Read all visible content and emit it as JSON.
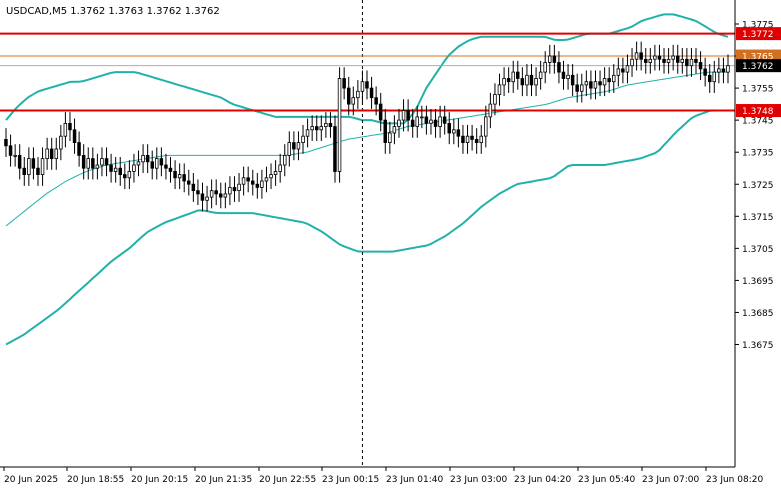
{
  "header": {
    "symbol_line": "USDCAD,M5  1.3762 1.3763 1.3762 1.3762"
  },
  "colors": {
    "background": "#ffffff",
    "candle": "#000000",
    "bollinger": "#20b2aa",
    "level_line": "#e00000",
    "orange_line": "#d07020",
    "price_box": "#000000",
    "grid_text": "#000000"
  },
  "chart_data": {
    "type": "candlestick",
    "title": "USDCAD,M5",
    "ylim": [
      1.367,
      1.378
    ],
    "y_ticks": [
      "1.3775",
      "1.3765",
      "1.3755",
      "1.3745",
      "1.3735",
      "1.3725",
      "1.3715",
      "1.3705",
      "1.3695",
      "1.3685",
      "1.3675"
    ],
    "x_ticks": [
      "20 Jun 2025",
      "20 Jun 18:55",
      "20 Jun 20:15",
      "20 Jun 21:35",
      "20 Jun 22:55",
      "23 Jun 00:15",
      "23 Jun 01:40",
      "23 Jun 03:00",
      "23 Jun 04:20",
      "23 Jun 05:40",
      "23 Jun 07:00",
      "23 Jun 08:20"
    ],
    "horizontal_levels": [
      {
        "price": 1.3772,
        "label": "1.3772",
        "color": "#e00000"
      },
      {
        "price": 1.3748,
        "label": "1.3748",
        "color": "#e00000"
      },
      {
        "price": 1.3765,
        "label": "1.3765",
        "color": "#d07020"
      },
      {
        "price": 1.3762,
        "label": "1.3762",
        "color": "#000000"
      }
    ],
    "session_separator_index": 78,
    "close": [
      1.3737,
      1.3734,
      1.3734,
      1.373,
      1.3728,
      1.3733,
      1.373,
      1.3728,
      1.3733,
      1.3736,
      1.3733,
      1.3736,
      1.374,
      1.3744,
      1.3742,
      1.3738,
      1.3734,
      1.373,
      1.3733,
      1.373,
      1.3731,
      1.3733,
      1.3731,
      1.3729,
      1.373,
      1.3728,
      1.3727,
      1.3729,
      1.3731,
      1.3732,
      1.3734,
      1.3732,
      1.373,
      1.3733,
      1.3731,
      1.373,
      1.3729,
      1.3727,
      1.3728,
      1.3726,
      1.3725,
      1.3723,
      1.3722,
      1.372,
      1.3721,
      1.3723,
      1.3722,
      1.3721,
      1.3722,
      1.3724,
      1.3723,
      1.3725,
      1.3727,
      1.3726,
      1.3725,
      1.3724,
      1.3726,
      1.3727,
      1.3728,
      1.3729,
      1.3731,
      1.3734,
      1.3738,
      1.3736,
      1.3738,
      1.374,
      1.3742,
      1.3743,
      1.3742,
      1.3743,
      1.3744,
      1.3743,
      1.3729,
      1.3758,
      1.3755,
      1.375,
      1.3752,
      1.3754,
      1.3757,
      1.3755,
      1.3752,
      1.375,
      1.3745,
      1.3738,
      1.3741,
      1.3743,
      1.3745,
      1.3748,
      1.3745,
      1.3743,
      1.3746,
      1.3746,
      1.3744,
      1.3745,
      1.3743,
      1.3746,
      1.3744,
      1.3741,
      1.3742,
      1.374,
      1.3738,
      1.374,
      1.3739,
      1.3738,
      1.374,
      1.3746,
      1.375,
      1.3753,
      1.3756,
      1.3758,
      1.3757,
      1.376,
      1.3758,
      1.3756,
      1.3759,
      1.3756,
      1.3758,
      1.376,
      1.3763,
      1.3765,
      1.3763,
      1.376,
      1.3758,
      1.3759,
      1.3756,
      1.3754,
      1.3756,
      1.3757,
      1.3755,
      1.3757,
      1.3756,
      1.3758,
      1.3757,
      1.3759,
      1.3761,
      1.376,
      1.3762,
      1.3764,
      1.3766,
      1.3764,
      1.3763,
      1.3764,
      1.3765,
      1.3764,
      1.3763,
      1.3764,
      1.3765,
      1.3763,
      1.3764,
      1.3762,
      1.3764,
      1.3763,
      1.3761,
      1.3759,
      1.3757,
      1.376,
      1.3761,
      1.376,
      1.3762
    ],
    "bollinger_upper": [
      1.3745,
      1.3749,
      1.3752,
      1.3754,
      1.3755,
      1.3756,
      1.3757,
      1.3757,
      1.3758,
      1.3759,
      1.376,
      1.376,
      1.376,
      1.3759,
      1.3758,
      1.3757,
      1.3756,
      1.3755,
      1.3754,
      1.3753,
      1.3752,
      1.375,
      1.3749,
      1.3748,
      1.3747,
      1.3746,
      1.3746,
      1.3746,
      1.3746,
      1.3746,
      1.3746,
      1.3746,
      1.3746,
      1.3745,
      1.3745,
      1.3744,
      1.3744,
      1.3744,
      1.3748,
      1.3755,
      1.376,
      1.3765,
      1.3768,
      1.377,
      1.3771,
      1.3771,
      1.3771,
      1.3771,
      1.3771,
      1.3771,
      1.3771,
      1.377,
      1.377,
      1.3771,
      1.3772,
      1.3772,
      1.3772,
      1.3773,
      1.3774,
      1.3776,
      1.3777,
      1.3778,
      1.3778,
      1.3777,
      1.3776,
      1.3774,
      1.3772,
      1.3771
    ],
    "bollinger_middle": [
      1.3712,
      1.3717,
      1.3722,
      1.3726,
      1.3729,
      1.3731,
      1.3732,
      1.3733,
      1.3734,
      1.3734,
      1.3734,
      1.3734,
      1.3734,
      1.3734,
      1.3734,
      1.3735,
      1.3737,
      1.3739,
      1.374,
      1.3741,
      1.3743,
      1.3744,
      1.3745,
      1.3746,
      1.3747,
      1.3748,
      1.3749,
      1.375,
      1.3752,
      1.3753,
      1.3754,
      1.3756,
      1.3757,
      1.3758,
      1.3759,
      1.376,
      1.376
    ],
    "bollinger_lower": [
      1.3675,
      1.3678,
      1.3682,
      1.3686,
      1.3691,
      1.3696,
      1.3701,
      1.3705,
      1.371,
      1.3713,
      1.3715,
      1.3717,
      1.3716,
      1.3716,
      1.3716,
      1.3715,
      1.3714,
      1.3713,
      1.371,
      1.3706,
      1.3704,
      1.3704,
      1.3704,
      1.3705,
      1.3706,
      1.3709,
      1.3713,
      1.3718,
      1.3722,
      1.3725,
      1.3726,
      1.3727,
      1.3731,
      1.3731,
      1.3731,
      1.3732,
      1.3733,
      1.3735,
      1.3741,
      1.3746,
      1.3748,
      1.3748
    ]
  }
}
